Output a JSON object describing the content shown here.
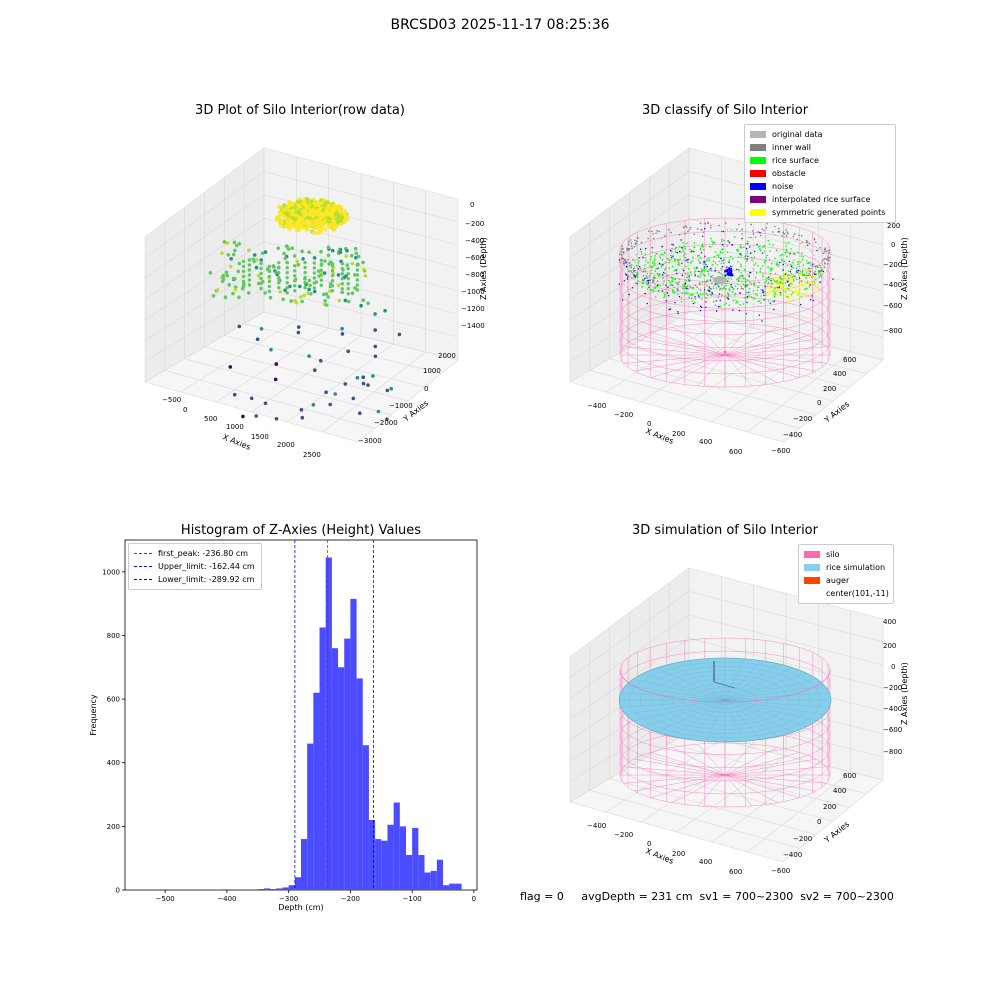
{
  "figure": {
    "suptitle": "BRCSD03 2025-11-17 08:25:36",
    "status_line": "flag = 0     avgDepth = 231 cm  sv1 = 700~2300  sv2 = 700~2300"
  },
  "panels": {
    "raw": {
      "title": "3D Plot of Silo Interior(row data)",
      "xlabel": "X Axies",
      "ylabel": "Y Axies",
      "zlabel": "Z Axies (Depth)",
      "xticks": [
        "−500",
        "0",
        "500",
        "1000",
        "1500",
        "2000",
        "2500"
      ],
      "yticks": [
        "2000",
        "1000",
        "0",
        "−1000",
        "−2000",
        "−3000"
      ],
      "zticks": [
        "0",
        "−200",
        "−400",
        "−600",
        "−800",
        "−1000",
        "−1200",
        "−1400"
      ]
    },
    "classify": {
      "title": "3D classify of Silo Interior",
      "xlabel": "X Axies",
      "ylabel": "Y Axies",
      "zlabel": "Z Axies (Depth)",
      "xticks": [
        "−400",
        "−200",
        "0",
        "200",
        "400",
        "600"
      ],
      "yticks": [
        "600",
        "400",
        "200",
        "0",
        "−200",
        "−400",
        "−600"
      ],
      "zticks": [
        "200",
        "0",
        "−200",
        "−400",
        "−600",
        "−800"
      ],
      "legend": [
        {
          "label": "original data",
          "color": "#b5b5b5"
        },
        {
          "label": "inner wall",
          "color": "#808080"
        },
        {
          "label": "rice surface",
          "color": "#00ff00"
        },
        {
          "label": "obstacle",
          "color": "#ff0000"
        },
        {
          "label": "noise",
          "color": "#0000ff"
        },
        {
          "label": "interpolated rice surface",
          "color": "#800080"
        },
        {
          "label": "symmetric generated points",
          "color": "#ffff00"
        }
      ]
    },
    "histogram": {
      "title": "Histogram of Z-Axies (Height) Values",
      "xlabel": "Depth (cm)",
      "ylabel": "Frequency",
      "legend": [
        {
          "label": "first_peak: -236.80 cm",
          "color": "#ff0000"
        },
        {
          "label": "Upper_limit: -162.44 cm",
          "color": "#0000ff"
        },
        {
          "label": "Lower_limit: -289.92 cm",
          "color": "#0000ff"
        }
      ]
    },
    "simulation": {
      "title": "3D simulation of Silo Interior",
      "xlabel": "X Axies",
      "ylabel": "Y Axies",
      "zlabel": "Z Axies (Depth)",
      "xticks": [
        "−400",
        "−200",
        "0",
        "200",
        "400",
        "600"
      ],
      "yticks": [
        "600",
        "400",
        "200",
        "0",
        "−200",
        "−400",
        "−600"
      ],
      "zticks": [
        "400",
        "200",
        "0",
        "−200",
        "−400",
        "−600",
        "−800"
      ],
      "legend": [
        {
          "label": "silo",
          "color": "#ff69b4"
        },
        {
          "label": "rice simulation",
          "color": "#87ceeb"
        },
        {
          "label": "auger",
          "color": "#ff4500"
        },
        {
          "label": "center(101,-11)",
          "color": ""
        }
      ]
    }
  },
  "chart_data": [
    {
      "type": "scatter",
      "title": "3D Plot of Silo Interior(row data)",
      "xlabel": "X Axies",
      "ylabel": "Y Axies",
      "zlabel": "Z Axies (Depth)",
      "xlim": [
        -700,
        2800
      ],
      "ylim": [
        -3200,
        2400
      ],
      "zlim": [
        -1500,
        50
      ]
    },
    {
      "type": "scatter",
      "title": "3D classify of Silo Interior",
      "xlabel": "X Axies",
      "ylabel": "Y Axies",
      "zlabel": "Z Axies (Depth)",
      "xlim": [
        -500,
        700
      ],
      "ylim": [
        -650,
        650
      ],
      "zlim": [
        -900,
        250
      ],
      "series": [
        {
          "name": "original data"
        },
        {
          "name": "inner wall"
        },
        {
          "name": "rice surface"
        },
        {
          "name": "obstacle"
        },
        {
          "name": "noise"
        },
        {
          "name": "interpolated rice surface"
        },
        {
          "name": "symmetric generated points"
        }
      ]
    },
    {
      "type": "bar",
      "title": "Histogram of Z-Axies (Height) Values",
      "xlabel": "Depth (cm)",
      "ylabel": "Frequency",
      "xlim": [
        -565,
        5
      ],
      "ylim": [
        0,
        1100
      ],
      "xticks": [
        -500,
        -400,
        -300,
        -200,
        -100,
        0
      ],
      "yticks": [
        0,
        200,
        400,
        600,
        800,
        1000
      ],
      "bin_width": 10,
      "bins": [
        [
          -550,
          2
        ],
        [
          -460,
          2
        ],
        [
          -420,
          1
        ],
        [
          -360,
          2
        ],
        [
          -350,
          3
        ],
        [
          -340,
          5
        ],
        [
          -330,
          3
        ],
        [
          -320,
          5
        ],
        [
          -310,
          8
        ],
        [
          -300,
          15
        ],
        [
          -290,
          40
        ],
        [
          -280,
          160
        ],
        [
          -270,
          460
        ],
        [
          -260,
          620
        ],
        [
          -250,
          825
        ],
        [
          -240,
          1045
        ],
        [
          -230,
          760
        ],
        [
          -220,
          700
        ],
        [
          -210,
          790
        ],
        [
          -200,
          915
        ],
        [
          -190,
          665
        ],
        [
          -180,
          455
        ],
        [
          -170,
          220
        ],
        [
          -160,
          160
        ],
        [
          -150,
          155
        ],
        [
          -140,
          205
        ],
        [
          -130,
          275
        ],
        [
          -120,
          200
        ],
        [
          -110,
          110
        ],
        [
          -100,
          195
        ],
        [
          -90,
          110
        ],
        [
          -80,
          55
        ],
        [
          -70,
          60
        ],
        [
          -60,
          95
        ],
        [
          -50,
          15
        ],
        [
          -40,
          20
        ],
        [
          -30,
          20
        ]
      ],
      "vlines": [
        {
          "label": "first_peak: -236.80 cm",
          "x": -236.8,
          "color": "#ff0000"
        },
        {
          "label": "Upper_limit: -162.44 cm",
          "x": -162.44,
          "color": "#0000ff"
        },
        {
          "label": "Lower_limit: -289.92 cm",
          "x": -289.92,
          "color": "#0000ff"
        }
      ]
    },
    {
      "type": "area",
      "title": "3D simulation of Silo Interior",
      "xlabel": "X Axies",
      "ylabel": "Y Axies",
      "zlabel": "Z Axies (Depth)",
      "xlim": [
        -500,
        700
      ],
      "ylim": [
        -650,
        650
      ],
      "zlim": [
        -900,
        450
      ],
      "series": [
        {
          "name": "silo"
        },
        {
          "name": "rice simulation"
        },
        {
          "name": "auger"
        },
        {
          "name": "center(101,-11)"
        }
      ]
    }
  ]
}
